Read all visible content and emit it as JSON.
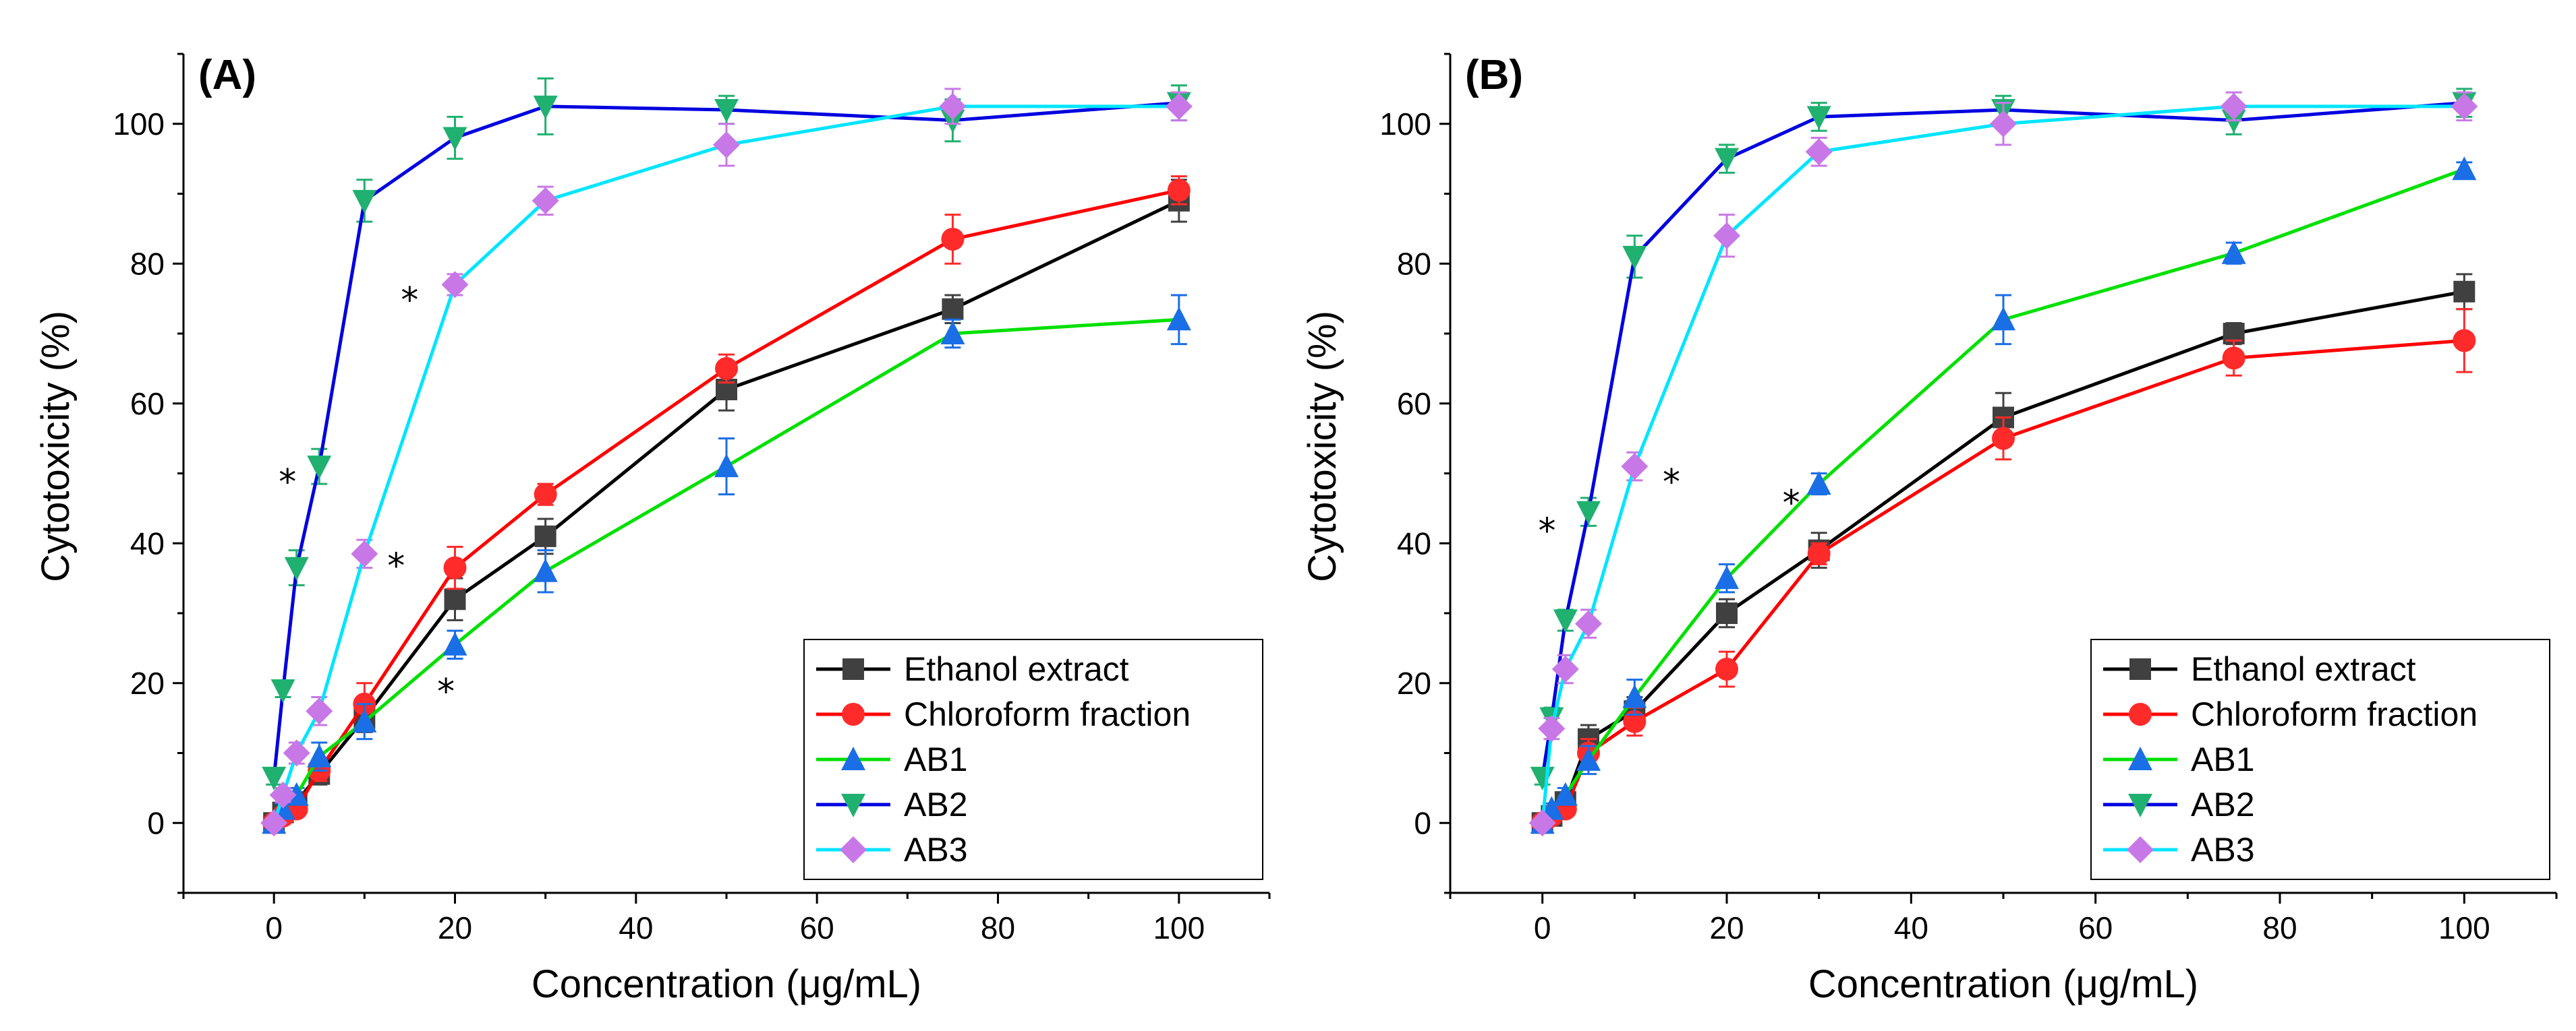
{
  "chart_data": [
    {
      "panel": "(A)",
      "type": "line",
      "xlabel": "Concentration (μg/mL)",
      "ylabel": "Cytotoxicity (%)",
      "xlim": [
        -10,
        110
      ],
      "ylim": [
        -10,
        110
      ],
      "xticks": [
        0,
        20,
        40,
        60,
        80,
        100
      ],
      "yticks": [
        0,
        20,
        40,
        60,
        80,
        100
      ],
      "legend_position": "bottom-right",
      "series": [
        {
          "name": "Ethanol extract",
          "color": "#000000",
          "marker_color": "#404040",
          "marker": "square",
          "x": [
            0,
            1,
            2.5,
            5,
            10,
            20,
            30,
            50,
            75,
            100
          ],
          "y": [
            0,
            1.5,
            3,
            7,
            15,
            32,
            41,
            62,
            73.5,
            89
          ],
          "err": [
            0.5,
            0.8,
            1,
            1.5,
            2,
            3,
            2.5,
            3,
            2,
            3
          ]
        },
        {
          "name": "Chloroform fraction",
          "color": "#ff0000",
          "marker_color": "#ff2a2a",
          "marker": "circle",
          "x": [
            0,
            1,
            2.5,
            5,
            10,
            20,
            30,
            50,
            75,
            100
          ],
          "y": [
            0,
            1,
            2,
            7.5,
            17,
            36.5,
            47,
            65,
            83.5,
            90.5
          ],
          "err": [
            0.5,
            0.8,
            1,
            1.5,
            3,
            3,
            1.5,
            2,
            3.5,
            2
          ]
        },
        {
          "name": "AB1",
          "color": "#00e000",
          "marker_color": "#1a6ee6",
          "marker": "triangle-up",
          "x": [
            0,
            1,
            2.5,
            5,
            10,
            20,
            30,
            50,
            75,
            100
          ],
          "y": [
            0,
            2,
            4,
            9.5,
            14.5,
            25.5,
            36,
            51,
            70,
            72
          ],
          "err": [
            0.5,
            0.8,
            1,
            2,
            2.5,
            2,
            3,
            4,
            2,
            3.5
          ]
        },
        {
          "name": "AB2",
          "color": "#0000e0",
          "marker_color": "#20b070",
          "marker": "triangle-down",
          "x": [
            0,
            1,
            2.5,
            5,
            10,
            20,
            30,
            50,
            75,
            100
          ],
          "y": [
            6.5,
            19,
            36.5,
            51,
            89,
            98,
            102.5,
            102,
            100.5,
            103
          ],
          "err": [
            1,
            1,
            2.5,
            2.5,
            3,
            3,
            4,
            2,
            3,
            2.5
          ]
        },
        {
          "name": "AB3",
          "color": "#00e5ff",
          "marker_color": "#c878e6",
          "marker": "diamond",
          "x": [
            0,
            1,
            2.5,
            5,
            10,
            20,
            30,
            50,
            75,
            100
          ],
          "y": [
            0,
            4,
            10,
            16,
            38.5,
            77,
            89,
            97,
            102.5,
            102.5
          ],
          "err": [
            0.5,
            1,
            1.5,
            2,
            2,
            1.5,
            2,
            3,
            2.5,
            2
          ]
        }
      ],
      "annotations": [
        {
          "text": "*",
          "x": 1.5,
          "y": 49
        },
        {
          "text": "*",
          "x": 13.5,
          "y": 37
        },
        {
          "text": "*",
          "x": 15,
          "y": 75
        },
        {
          "text": "*",
          "x": 19,
          "y": 19
        }
      ]
    },
    {
      "panel": "(B)",
      "type": "line",
      "xlabel": "Concentration (μg/mL)",
      "ylabel": "Cytotoxicity (%)",
      "xlim": [
        -10,
        110
      ],
      "ylim": [
        -10,
        110
      ],
      "xticks": [
        0,
        20,
        40,
        60,
        80,
        100
      ],
      "yticks": [
        0,
        20,
        40,
        60,
        80,
        100
      ],
      "legend_position": "bottom-right",
      "series": [
        {
          "name": "Ethanol extract",
          "color": "#000000",
          "marker_color": "#404040",
          "marker": "square",
          "x": [
            0,
            1,
            2.5,
            5,
            10,
            20,
            30,
            50,
            75,
            100
          ],
          "y": [
            0,
            1,
            3,
            12,
            16,
            30,
            39,
            58,
            70,
            76
          ],
          "err": [
            0.5,
            0.8,
            1,
            2,
            2,
            2,
            2.5,
            3.5,
            1.5,
            2.5
          ]
        },
        {
          "name": "Chloroform fraction",
          "color": "#ff0000",
          "marker_color": "#ff2a2a",
          "marker": "circle",
          "x": [
            0,
            1,
            2.5,
            5,
            10,
            20,
            30,
            50,
            75,
            100
          ],
          "y": [
            0,
            1,
            2,
            10,
            14.5,
            22,
            38.5,
            55,
            66.5,
            69
          ],
          "err": [
            0.5,
            0.8,
            1,
            2,
            2,
            2.5,
            1.5,
            3,
            2.5,
            4.5
          ]
        },
        {
          "name": "AB1",
          "color": "#00e000",
          "marker_color": "#1a6ee6",
          "marker": "triangle-up",
          "x": [
            0,
            1,
            2.5,
            5,
            10,
            20,
            30,
            50,
            75,
            100
          ],
          "y": [
            0,
            2,
            4,
            9,
            18,
            35,
            48.5,
            72,
            81.5,
            93.5
          ],
          "err": [
            0.5,
            0.8,
            1,
            2,
            2.5,
            2,
            1.5,
            3.5,
            1.5,
            1
          ]
        },
        {
          "name": "AB2",
          "color": "#0000e0",
          "marker_color": "#20b070",
          "marker": "triangle-down",
          "x": [
            0,
            1,
            2.5,
            5,
            10,
            20,
            30,
            50,
            75,
            100
          ],
          "y": [
            6.5,
            15,
            29,
            44.5,
            81,
            95,
            101,
            102,
            100.5,
            103
          ],
          "err": [
            1,
            1.5,
            1.5,
            2,
            3,
            2,
            2,
            2,
            2,
            2
          ]
        },
        {
          "name": "AB3",
          "color": "#00e5ff",
          "marker_color": "#c878e6",
          "marker": "diamond",
          "x": [
            0,
            1,
            2.5,
            5,
            10,
            20,
            30,
            50,
            75,
            100
          ],
          "y": [
            0,
            13.5,
            22,
            28.5,
            51,
            84,
            96,
            100,
            102.5,
            102.5
          ],
          "err": [
            0.5,
            1.5,
            2,
            2,
            2,
            3,
            2,
            3,
            2,
            2
          ]
        }
      ],
      "annotations": [
        {
          "text": "*",
          "x": 0.5,
          "y": 42
        },
        {
          "text": "*",
          "x": 14,
          "y": 49
        },
        {
          "text": "*",
          "x": 27,
          "y": 46
        }
      ]
    }
  ]
}
